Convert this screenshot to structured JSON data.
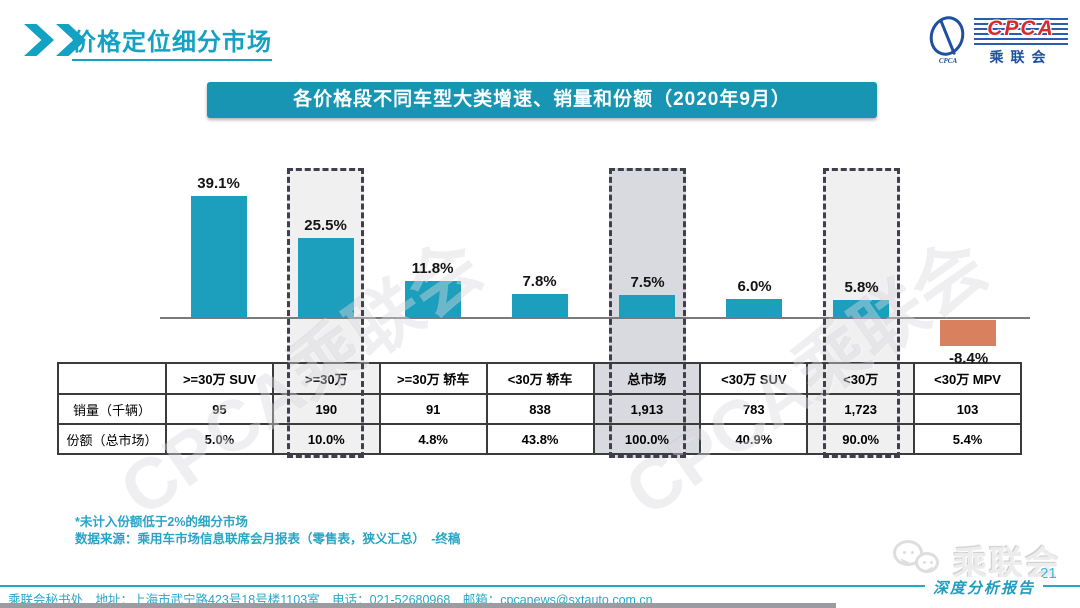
{
  "page": {
    "title": "价格定位细分市场",
    "banner": "各价格段不同车型大类增速、销量和份额（2020年9月）",
    "page_number": "21",
    "report_label": "深度分析报告",
    "footnote1": "*未计入份额低于2%的细分市场",
    "footnote2": "数据来源：乘用车市场信息联席会月报表（零售表，狭义汇总）　-终稿",
    "footer": "乘联会秘书处　地址：上海市武宁路423号18号楼1103室　电话：021-52680968　邮箱：cpcanews@sxtauto.com.cn"
  },
  "logo": {
    "cpca": "CPCA",
    "cn": "乘联会",
    "sub": "CPCA"
  },
  "watermark_text": "CPCA乘联会",
  "wechat_watermark_text": "乘联会",
  "chart_data": {
    "type": "bar",
    "title": "各价格段不同车型大类增速、销量和份额（2020年9月）",
    "categories": [
      ">=30万 SUV",
      ">=30万",
      ">=30万 轿车",
      "<30万 轿车",
      "总市场",
      "<30万 SUV",
      "<30万",
      "<30万 MPV"
    ],
    "series": [
      {
        "name": "增速",
        "unit": "%",
        "values": [
          39.1,
          25.5,
          11.8,
          7.8,
          7.5,
          6.0,
          5.8,
          -8.4
        ]
      },
      {
        "name": "销量（千辆）",
        "values": [
          "95",
          "190",
          "91",
          "838",
          "1,913",
          "783",
          "1,723",
          "103"
        ]
      },
      {
        "name": "份额（总市场）",
        "values": [
          "5.0%",
          "10.0%",
          "4.8%",
          "43.8%",
          "100.0%",
          "40.9%",
          "90.0%",
          "5.4%"
        ]
      }
    ],
    "row_labels": [
      "销量（千辆）",
      "份额（总市场）"
    ],
    "highlights": [
      {
        "category_index": 1,
        "fill": "#f0f0f0"
      },
      {
        "category_index": 4,
        "fill": "#d9d9e0"
      },
      {
        "category_index": 6,
        "fill": "#f0f0f0"
      }
    ],
    "bar_color": "#1b9fbc",
    "negative_bar_color": "#d9805f",
    "ylim": [
      -15,
      45
    ],
    "grid": false,
    "legend": false
  }
}
